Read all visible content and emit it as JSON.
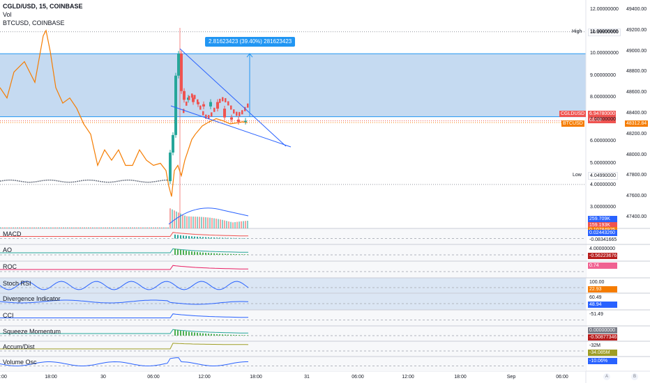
{
  "header": {
    "symbol": "CGLD/USD, 15, COINBASE",
    "vol": "Vol",
    "compare": "BTCUSD, COINBASE"
  },
  "measure_label": "2.81623423 (39.40%) 281623423",
  "hl": {
    "high_label": "High",
    "high_value": "10.99800000",
    "low_label": "Low",
    "low_value": "4.04990000"
  },
  "axis_left": [
    "12.00000000",
    "11.00000000",
    "10.00000000",
    "9.00000000",
    "8.00000000",
    "7.00000000",
    "6.00000000",
    "5.00000000",
    "4.00000000",
    "3.00000000"
  ],
  "axis_right": [
    "49400.00",
    "49200.00",
    "49000.00",
    "48800.00",
    "48600.00",
    "48400.00",
    "48200.00",
    "48000.00",
    "47800.00",
    "47600.00",
    "47400.00"
  ],
  "price_tags": {
    "cgld_name": "CGLDUSD",
    "cgld_value": "6.94780000",
    "cgld_countdown": "03:59",
    "btc_name": "BTCUSD",
    "btc_value": "48312.84"
  },
  "vol_tags": {
    "v1": "259.709K",
    "v2": "159.193K",
    "v3": "0.10784925"
  },
  "panes": [
    {
      "label": "MACD",
      "values": [
        "0.02443260",
        "-0.08341665"
      ]
    },
    {
      "label": "AO",
      "values": [
        "4.00000000",
        "-0.56223676"
      ]
    },
    {
      "label": "ROC",
      "values": [
        "0.74"
      ]
    },
    {
      "label": "Stoch RSI",
      "values": [
        "100.00",
        "22.93"
      ]
    },
    {
      "label": "Divergence Indicator",
      "values": [
        "60.49",
        "48.94"
      ]
    },
    {
      "label": "CCI",
      "values": [
        "-51.49"
      ]
    },
    {
      "label": "Squeeze Momentum",
      "values": [
        "0.00000000",
        "-0.50877346"
      ]
    },
    {
      "label": "Accum/Dist",
      "values": [
        "-32M",
        "-34.085M"
      ]
    },
    {
      "label": "Volume Osc",
      "values": [
        "-10.06%"
      ]
    }
  ],
  "x_ticks": [
    "18:00",
    "30",
    "06:00",
    "12:00",
    "18:00",
    "31",
    "06:00",
    "12:00",
    "18:00",
    "Sep",
    "06:00"
  ],
  "x_edge": ":00",
  "corner_buttons": [
    "A",
    "B"
  ],
  "colors": {
    "accent": "#2962ff",
    "btc": "#f57c00",
    "up": "#26a69a",
    "down": "#ef5350",
    "band": "#bbd3ee",
    "green": "#4caf50",
    "red": "#ff5252"
  },
  "chart_data": {
    "type": "line",
    "title": "CGLD/USD, 15, COINBASE",
    "ylim": [
      3.0,
      12.0
    ],
    "ylim_right": [
      47400,
      49400
    ],
    "series": [
      {
        "name": "CGLDUSD",
        "x": [
          0,
          60,
          120,
          170,
          205,
          225,
          242,
          246,
          250,
          254,
          258,
          262,
          268,
          275,
          282,
          290,
          300,
          310,
          320,
          330,
          340,
          350,
          355
        ],
        "values": [
          4.25,
          4.2,
          4.1,
          4.15,
          4.2,
          4.25,
          4.2,
          5.5,
          6.3,
          9.0,
          10.0,
          8.3,
          7.9,
          8.0,
          7.8,
          7.7,
          7.6,
          7.8,
          7.5,
          7.1,
          7.0,
          6.9,
          6.95
        ]
      },
      {
        "name": "BTCUSD",
        "x": [
          0,
          10,
          20,
          35,
          50,
          62,
          66,
          72,
          80,
          90,
          100,
          110,
          120,
          130,
          140,
          150,
          160,
          170,
          180,
          190,
          200,
          210,
          220,
          230,
          238,
          242,
          246,
          250,
          255,
          260,
          265,
          270,
          275,
          280,
          290,
          300,
          310,
          320,
          330,
          340,
          348,
          355
        ],
        "values": [
          48650,
          48550,
          48800,
          48900,
          48700,
          49150,
          49200,
          49000,
          48650,
          48500,
          48550,
          48450,
          48300,
          48200,
          47900,
          48050,
          47950,
          48050,
          47900,
          47900,
          48050,
          47950,
          47900,
          47920,
          47850,
          47700,
          47600,
          47850,
          47900,
          47800,
          47950,
          48050,
          48150,
          48200,
          48280,
          48320,
          48350,
          48330,
          48300,
          48310,
          48320,
          48312
        ]
      }
    ],
    "markers": {
      "high": 10.998,
      "low": 4.0499
    },
    "measure": {
      "from": 7.14,
      "to": 9.96,
      "change": 2.81623423,
      "percent": 39.4
    }
  }
}
